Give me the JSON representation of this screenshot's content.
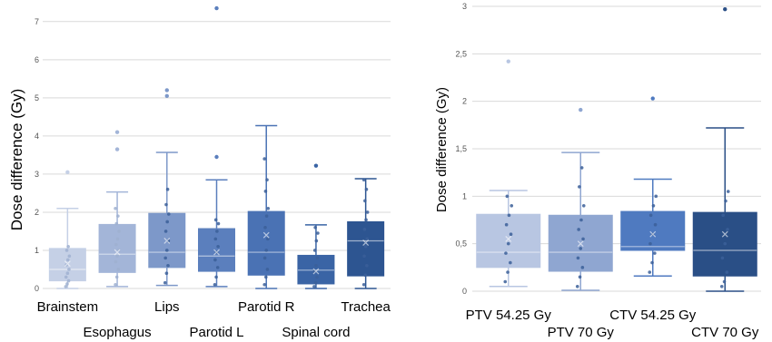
{
  "chart_data": [
    {
      "type": "box",
      "ylabel": "Dose difference (Gy)",
      "ylim": [
        0,
        7.4
      ],
      "yticks": [
        0,
        1,
        2,
        3,
        4,
        5,
        6,
        7
      ],
      "grid": true,
      "categories": [
        "Brainstem",
        "Esophagus",
        "Lips",
        "Parotid L",
        "Parotid R",
        "Spinal cord",
        "Trachea"
      ],
      "boxes": [
        {
          "category": "Brainstem",
          "color": "#c5d0e6",
          "min": 0.0,
          "q1": 0.2,
          "median": 0.5,
          "mean": 0.65,
          "q3": 1.05,
          "max": 2.1,
          "points": [
            0.05,
            0.12,
            0.2,
            0.3,
            0.4,
            0.5,
            0.62,
            0.75,
            0.85,
            1.0,
            1.1
          ],
          "outliers": [
            3.05
          ]
        },
        {
          "category": "Esophagus",
          "color": "#a3b5d8",
          "min": 0.05,
          "q1": 0.42,
          "median": 0.9,
          "mean": 0.95,
          "q3": 1.68,
          "max": 2.53,
          "points": [
            0.1,
            0.3,
            0.5,
            0.7,
            0.85,
            1.0,
            1.15,
            1.3,
            1.5,
            1.7,
            1.9,
            2.1
          ],
          "outliers": [
            3.65,
            4.1
          ]
        },
        {
          "category": "Lips",
          "color": "#7d98c9",
          "min": 0.08,
          "q1": 0.55,
          "median": 0.95,
          "mean": 1.25,
          "q3": 1.97,
          "max": 3.57,
          "points": [
            0.15,
            0.4,
            0.6,
            0.8,
            1.0,
            1.25,
            1.5,
            1.75,
            1.95,
            2.2,
            2.6
          ],
          "outliers": [
            5.05,
            5.2
          ]
        },
        {
          "category": "Parotid L",
          "color": "#5b7fbd",
          "min": 0.05,
          "q1": 0.45,
          "median": 0.85,
          "mean": 0.95,
          "q3": 1.57,
          "max": 2.85,
          "points": [
            0.1,
            0.3,
            0.55,
            0.75,
            0.95,
            1.1,
            1.3,
            1.5,
            1.7,
            1.8
          ],
          "outliers": [
            3.45,
            7.35
          ]
        },
        {
          "category": "Parotid R",
          "color": "#4a72b4",
          "min": 0.0,
          "q1": 0.35,
          "median": 0.95,
          "mean": 1.4,
          "q3": 2.02,
          "max": 4.27,
          "points": [
            0.1,
            0.3,
            0.5,
            0.8,
            1.0,
            1.3,
            1.6,
            1.9,
            2.1,
            2.55,
            2.85,
            3.4
          ],
          "outliers": []
        },
        {
          "category": "Spinal cord",
          "color": "#3a64a5",
          "min": 0.0,
          "q1": 0.12,
          "median": 0.48,
          "mean": 0.45,
          "q3": 0.87,
          "max": 1.67,
          "points": [
            0.05,
            0.15,
            0.3,
            0.45,
            0.6,
            0.8,
            1.0,
            1.25,
            1.45,
            1.6
          ],
          "outliers": [
            3.22
          ]
        },
        {
          "category": "Trachea",
          "color": "#2d5591",
          "min": 0.0,
          "q1": 0.33,
          "median": 1.25,
          "mean": 1.2,
          "q3": 1.75,
          "max": 2.88,
          "points": [
            0.1,
            0.35,
            0.6,
            0.85,
            1.1,
            1.3,
            1.55,
            1.8,
            2.0,
            2.3,
            2.6,
            2.85
          ],
          "outliers": []
        }
      ]
    },
    {
      "type": "box",
      "ylabel": "Dose difference (Gy)",
      "ylim": [
        0,
        3
      ],
      "yticks": [
        0,
        0.5,
        1,
        1.5,
        2,
        2.5,
        3
      ],
      "ytick_labels": [
        "0",
        "0,5",
        "1",
        "1,5",
        "2",
        "2,5",
        "3"
      ],
      "grid": true,
      "categories": [
        "PTV 54.25 Gy",
        "PTV 70 Gy",
        "CTV 54.25 Gy",
        "CTV 70 Gy"
      ],
      "boxes": [
        {
          "category": "PTV 54.25 Gy",
          "color": "#b8c6e2",
          "min": 0.05,
          "q1": 0.25,
          "median": 0.41,
          "mean": 0.55,
          "q3": 0.81,
          "max": 1.06,
          "points": [
            0.1,
            0.2,
            0.3,
            0.4,
            0.5,
            0.6,
            0.7,
            0.8,
            0.9,
            1.0
          ],
          "outliers": [
            2.42
          ]
        },
        {
          "category": "PTV 70 Gy",
          "color": "#8fa6d1",
          "min": 0.01,
          "q1": 0.21,
          "median": 0.41,
          "mean": 0.5,
          "q3": 0.8,
          "max": 1.46,
          "points": [
            0.05,
            0.15,
            0.25,
            0.35,
            0.45,
            0.55,
            0.65,
            0.75,
            0.9,
            1.1,
            1.3
          ],
          "outliers": [
            1.91
          ]
        },
        {
          "category": "CTV 54.25 Gy",
          "color": "#4f7ac0",
          "min": 0.16,
          "q1": 0.43,
          "median": 0.47,
          "mean": 0.6,
          "q3": 0.84,
          "max": 1.18,
          "points": [
            0.2,
            0.3,
            0.4,
            0.5,
            0.6,
            0.7,
            0.8,
            0.9,
            1.0
          ],
          "outliers": [
            2.03
          ]
        },
        {
          "category": "CTV 70 Gy",
          "color": "#2a4f86",
          "min": 0.0,
          "q1": 0.16,
          "median": 0.43,
          "mean": 0.6,
          "q3": 0.83,
          "max": 1.72,
          "points": [
            0.05,
            0.1,
            0.2,
            0.35,
            0.5,
            0.65,
            0.8,
            0.95,
            1.05
          ],
          "outliers": [
            2.97
          ]
        }
      ]
    }
  ]
}
